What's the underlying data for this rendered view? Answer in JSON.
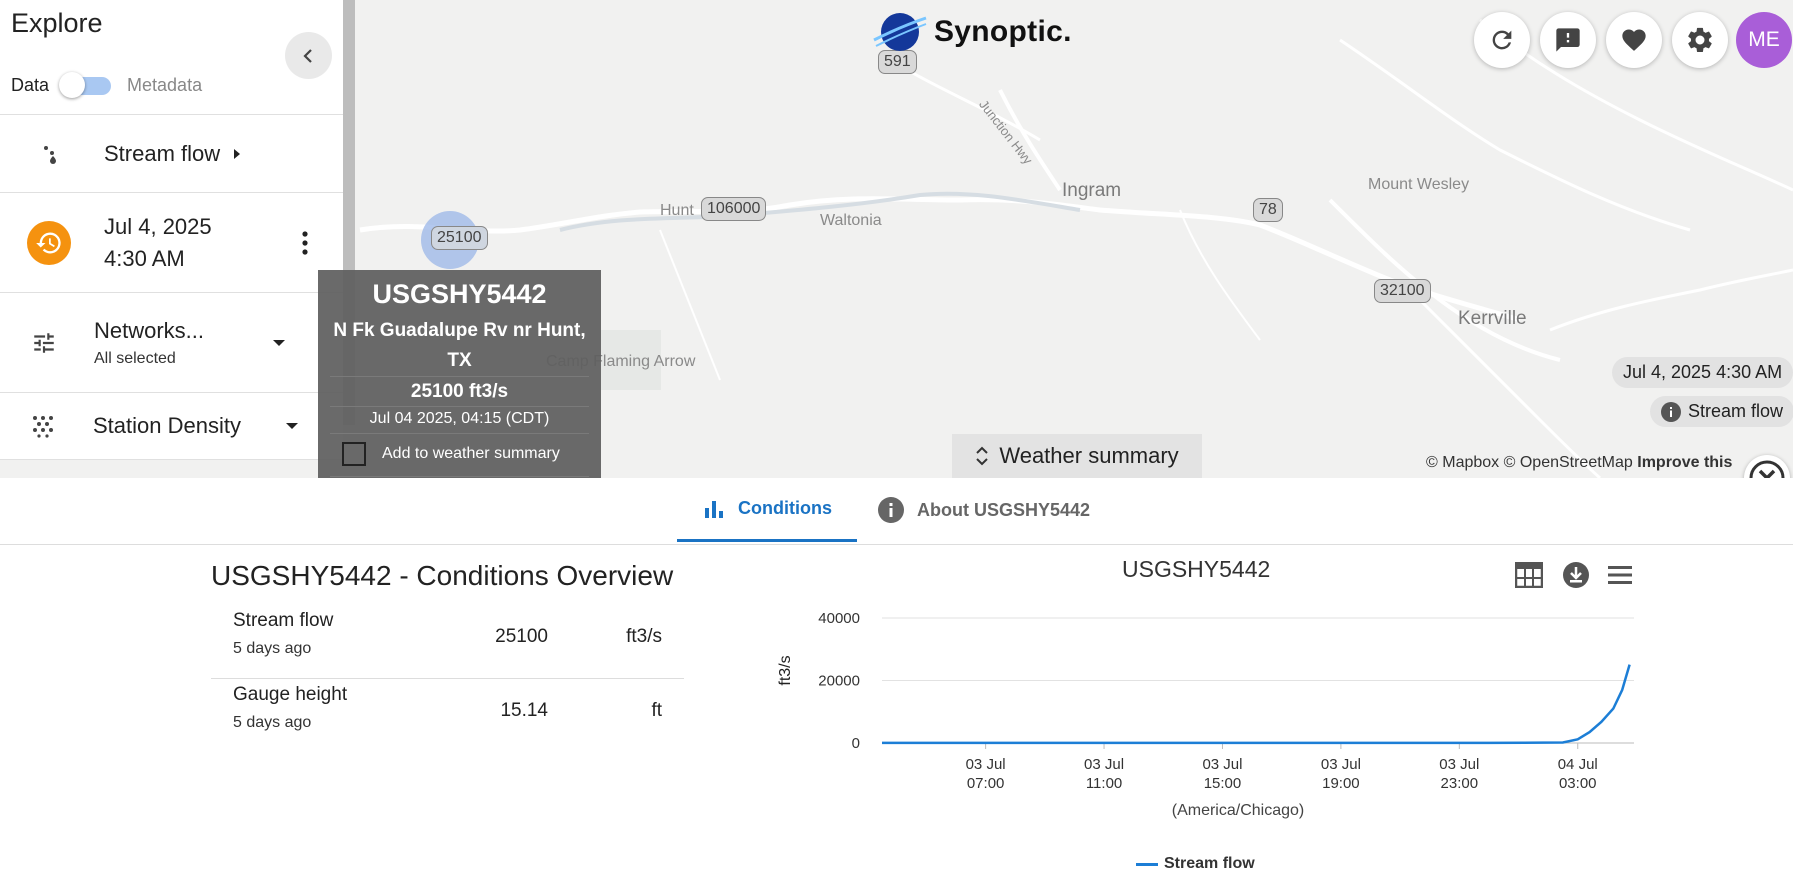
{
  "map": {
    "places": [
      "Hunt",
      "Waltonia",
      "Ingram",
      "Mount Wesley",
      "Kerrville",
      "Junction Hwy",
      "Camp Flaming Arrow"
    ],
    "shields": [
      "591",
      "106000",
      "78",
      "32100",
      "25100"
    ],
    "logo_text": "Synoptic.",
    "avatar_initials": "ME",
    "date_chip": "Jul 4, 2025 4:30 AM",
    "variable_chip": "Stream flow",
    "weather_summary_label": "Weather summary",
    "attribution": {
      "mapbox": "© Mapbox",
      "osm": "© OpenStreetMap",
      "improve": "Improve this"
    },
    "toolbar_icons": [
      "refresh-icon",
      "feedback-icon",
      "heart-icon",
      "settings-icon"
    ]
  },
  "sidebar": {
    "title": "Explore",
    "toggle": {
      "left": "Data",
      "right": "Metadata",
      "on": false
    },
    "variable": "Stream flow",
    "date_line1": "Jul 4, 2025",
    "date_line2": "4:30 AM",
    "networks_label": "Networks...",
    "networks_sub": "All selected",
    "density_label": "Station Density"
  },
  "popup": {
    "station_id": "USGSHY5442",
    "name": "N Fk Guadalupe Rv nr Hunt, TX",
    "value": "25100 ft3/s",
    "time": "Jul 04 2025, 04:15 (CDT)",
    "add_label": "Add to weather summary"
  },
  "tabs": [
    {
      "label": "Conditions",
      "active": true
    },
    {
      "label": "About USGSHY5442",
      "active": false
    }
  ],
  "conditions": {
    "title": "USGSHY5442 - Conditions Overview",
    "rows": [
      {
        "name": "Stream flow",
        "ago": "5 days ago",
        "value": "25100",
        "unit": "ft3/s"
      },
      {
        "name": "Gauge height",
        "ago": "5 days ago",
        "value": "15.14",
        "unit": "ft"
      }
    ]
  },
  "chart": {
    "title": "USGSHY5442",
    "timezone_label": "(America/Chicago)",
    "legend": "Stream flow",
    "line_color": "#1c7ed6"
  },
  "chart_data": {
    "type": "line",
    "title": "USGSHY5442",
    "xlabel": "(America/Chicago)",
    "ylabel": "ft3/s",
    "ylim": [
      0,
      40000
    ],
    "yticks": [
      0,
      20000,
      40000
    ],
    "xtick_labels": [
      [
        "03 Jul",
        "07:00"
      ],
      [
        "03 Jul",
        "11:00"
      ],
      [
        "03 Jul",
        "15:00"
      ],
      [
        "03 Jul",
        "19:00"
      ],
      [
        "03 Jul",
        "23:00"
      ],
      [
        "04 Jul",
        "03:00"
      ]
    ],
    "xtick_hours": [
      7,
      11,
      15,
      19,
      23,
      27
    ],
    "xlim_hours": [
      3.5,
      28.9
    ],
    "series": [
      {
        "name": "Stream flow",
        "x_hours": [
          3.5,
          8,
          12,
          16,
          20,
          24,
          26.5,
          27.0,
          27.4,
          27.8,
          28.2,
          28.5,
          28.75
        ],
        "values": [
          30,
          30,
          30,
          30,
          30,
          40,
          150,
          1200,
          3500,
          6800,
          11000,
          17000,
          25100
        ]
      }
    ],
    "grid": true,
    "legend_position": "bottom"
  }
}
